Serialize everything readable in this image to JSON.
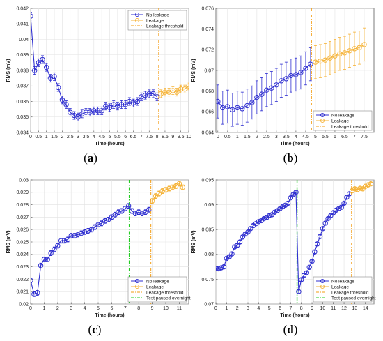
{
  "colors": {
    "no_leak": "#2f2fd0",
    "leak": "#f5b338",
    "threshold": "#f39c12",
    "paused": "#22cc22"
  },
  "chart_data": [
    {
      "id": "a",
      "type": "line",
      "panel_label": "(a)",
      "xlabel": "Time (hours)",
      "ylabel": "RMS (mV)",
      "xlim": [
        0,
        10
      ],
      "ylim": [
        0.034,
        0.042
      ],
      "xticks": [
        0,
        0.5,
        1,
        1.5,
        2,
        2.5,
        3,
        3.5,
        4,
        4.5,
        5,
        5.5,
        6,
        6.5,
        7,
        7.5,
        8,
        8.5,
        9,
        9.5,
        10
      ],
      "yticks": [
        0.034,
        0.035,
        0.036,
        0.037,
        0.038,
        0.039,
        0.04,
        0.041,
        0.042
      ],
      "ytick_labels": [
        "0.034",
        "0.035",
        "0.036",
        "0.037",
        "0.038",
        "0.039",
        "0.04",
        "0.041",
        "0.042"
      ],
      "grid": true,
      "legend_position": "top-right",
      "threshold_x": 8.1,
      "series": [
        {
          "name": "No leakage",
          "color_key": "no_leak",
          "err": 0.00025,
          "x": [
            0,
            0.25,
            0.5,
            0.75,
            1,
            1.25,
            1.5,
            1.75,
            2,
            2.25,
            2.5,
            2.75,
            3,
            3.25,
            3.5,
            3.75,
            4,
            4.25,
            4.5,
            4.75,
            5,
            5.25,
            5.5,
            5.75,
            6,
            6.25,
            6.5,
            6.75,
            7,
            7.25,
            7.5,
            7.75,
            8
          ],
          "y": [
            0.0415,
            0.038,
            0.0385,
            0.0387,
            0.0382,
            0.0375,
            0.0376,
            0.0369,
            0.0361,
            0.0358,
            0.0353,
            0.0351,
            0.035,
            0.0352,
            0.0353,
            0.0353,
            0.0354,
            0.0354,
            0.0354,
            0.0357,
            0.0356,
            0.0358,
            0.0357,
            0.0358,
            0.0358,
            0.036,
            0.0359,
            0.036,
            0.0363,
            0.0364,
            0.0365,
            0.0365,
            0.0363
          ]
        },
        {
          "name": "Leakage",
          "color_key": "leak",
          "err": 0.00025,
          "x": [
            8.25,
            8.5,
            8.75,
            9,
            9.25,
            9.5,
            9.75,
            10
          ],
          "y": [
            0.0365,
            0.0366,
            0.0366,
            0.0367,
            0.0366,
            0.0368,
            0.0368,
            0.037
          ]
        }
      ],
      "legend": [
        "No leakage",
        "Leakage",
        "Leakage threshold"
      ]
    },
    {
      "id": "b",
      "type": "line",
      "panel_label": "(b)",
      "xlabel": "Time (hours)",
      "ylabel": "RMS (mV)",
      "xlim": [
        -0.1,
        8
      ],
      "ylim": [
        0.064,
        0.076
      ],
      "xticks": [
        0,
        0.5,
        1,
        1.5,
        2,
        2.5,
        3,
        3.5,
        4,
        4.5,
        5,
        5.5,
        6,
        6.5,
        7,
        7.5
      ],
      "yticks": [
        0.064,
        0.066,
        0.068,
        0.07,
        0.072,
        0.074,
        0.076
      ],
      "ytick_labels": [
        "0.064",
        "0.066",
        "0.068",
        "0.07",
        "0.072",
        "0.074",
        "0.076"
      ],
      "grid": true,
      "legend_position": "bottom-right",
      "threshold_x": 4.8,
      "series": [
        {
          "name": "No leakage",
          "color_key": "no_leak",
          "err": 0.0016,
          "x": [
            0,
            0.25,
            0.5,
            0.75,
            1,
            1.25,
            1.5,
            1.75,
            2,
            2.25,
            2.5,
            2.75,
            3,
            3.25,
            3.5,
            3.75,
            4,
            4.25,
            4.5,
            4.75
          ],
          "y": [
            0.067,
            0.0664,
            0.0665,
            0.0662,
            0.0664,
            0.0663,
            0.0666,
            0.0669,
            0.0674,
            0.0677,
            0.0681,
            0.0683,
            0.0686,
            0.069,
            0.0692,
            0.0695,
            0.0696,
            0.0698,
            0.0702,
            0.0706
          ]
        },
        {
          "name": "Leakage",
          "color_key": "leak",
          "err": 0.0016,
          "x": [
            5,
            5.25,
            5.5,
            5.75,
            6,
            6.25,
            6.5,
            6.75,
            7,
            7.25,
            7.5
          ],
          "y": [
            0.0708,
            0.0709,
            0.071,
            0.0712,
            0.0714,
            0.0716,
            0.0717,
            0.0719,
            0.0721,
            0.0722,
            0.0725
          ]
        }
      ],
      "legend": [
        "No leakage",
        "Leakage",
        "Leakage threshold"
      ]
    },
    {
      "id": "c",
      "type": "line",
      "panel_label": "(c)",
      "xlabel": "Time (hours)",
      "ylabel": "RMS (mV)",
      "xlim": [
        0,
        11.7
      ],
      "ylim": [
        0.02,
        0.03
      ],
      "xticks": [
        0,
        1,
        2,
        3,
        4,
        5,
        6,
        7,
        8,
        9,
        10,
        11
      ],
      "yticks": [
        0.02,
        0.021,
        0.022,
        0.023,
        0.024,
        0.025,
        0.026,
        0.027,
        0.028,
        0.029,
        0.03
      ],
      "ytick_labels": [
        "0.02",
        "0.021",
        "0.022",
        "0.023",
        "0.024",
        "0.025",
        "0.026",
        "0.027",
        "0.028",
        "0.029",
        "0.03"
      ],
      "grid": true,
      "legend_position": "bottom-right",
      "threshold_x": 8.9,
      "paused_x": 7.3,
      "series": [
        {
          "name": "No leakage",
          "color_key": "no_leak",
          "err": 0.0002,
          "x": [
            0,
            0.25,
            0.5,
            0.75,
            1,
            1.25,
            1.5,
            1.75,
            2,
            2.25,
            2.5,
            2.75,
            3,
            3.25,
            3.5,
            3.75,
            4,
            4.25,
            4.5,
            4.75,
            5,
            5.25,
            5.5,
            5.75,
            6,
            6.25,
            6.5,
            6.75,
            7,
            7.25,
            7.5,
            7.75,
            8,
            8.25,
            8.5,
            8.75
          ],
          "y": [
            0.0219,
            0.0208,
            0.0209,
            0.0231,
            0.0236,
            0.0236,
            0.0241,
            0.0244,
            0.0247,
            0.0251,
            0.0251,
            0.0252,
            0.0255,
            0.0255,
            0.0256,
            0.0257,
            0.0258,
            0.0259,
            0.026,
            0.0262,
            0.0264,
            0.0265,
            0.0267,
            0.0268,
            0.027,
            0.0272,
            0.0274,
            0.0275,
            0.0277,
            0.0279,
            0.0275,
            0.0273,
            0.0274,
            0.0273,
            0.0274,
            0.0276
          ]
        },
        {
          "name": "Leakage",
          "color_key": "leak",
          "err": 0.0002,
          "x": [
            9,
            9.25,
            9.5,
            9.75,
            10,
            10.25,
            10.5,
            10.75,
            11,
            11.25
          ],
          "y": [
            0.0283,
            0.0287,
            0.0289,
            0.0291,
            0.0292,
            0.0293,
            0.0294,
            0.0295,
            0.0297,
            0.0294
          ]
        }
      ],
      "legend": [
        "No leakage",
        "Leakage",
        "Leakage threshold",
        "Test paused overnight"
      ]
    },
    {
      "id": "d",
      "type": "line",
      "panel_label": "(d)",
      "xlabel": "Time (hours)",
      "ylabel": "RMS (mV)",
      "xlim": [
        0,
        14.8
      ],
      "ylim": [
        0.07,
        0.095
      ],
      "xticks": [
        0,
        1,
        2,
        3,
        4,
        5,
        6,
        7,
        8,
        9,
        10,
        11,
        12,
        13,
        14
      ],
      "yticks": [
        0.07,
        0.075,
        0.08,
        0.085,
        0.09,
        0.095
      ],
      "ytick_labels": [
        "0.07",
        "0.075",
        "0.08",
        "0.085",
        "0.09",
        "0.095"
      ],
      "grid": true,
      "legend_position": "bottom-right",
      "threshold_x": 12.7,
      "paused_x": 7.6,
      "series": [
        {
          "name": "No leakage",
          "color_key": "no_leak",
          "err": 0.0003,
          "x": [
            0,
            0.25,
            0.5,
            0.75,
            1,
            1.25,
            1.5,
            1.75,
            2,
            2.25,
            2.5,
            2.75,
            3,
            3.25,
            3.5,
            3.75,
            4,
            4.25,
            4.5,
            4.75,
            5,
            5.25,
            5.5,
            5.75,
            6,
            6.25,
            6.5,
            6.75,
            7,
            7.25,
            7.5,
            7.75,
            8,
            8.25,
            8.5,
            8.75,
            9,
            9.25,
            9.5,
            9.75,
            10,
            10.25,
            10.5,
            10.75,
            11,
            11.25,
            11.5,
            11.75,
            12,
            12.25,
            12.5
          ],
          "y": [
            0.0772,
            0.0771,
            0.0773,
            0.0775,
            0.0792,
            0.0795,
            0.0801,
            0.0815,
            0.0818,
            0.0825,
            0.0835,
            0.0841,
            0.0845,
            0.0852,
            0.0858,
            0.0862,
            0.0866,
            0.0868,
            0.0872,
            0.0874,
            0.0878,
            0.088,
            0.0885,
            0.0888,
            0.0892,
            0.0896,
            0.0899,
            0.0903,
            0.0914,
            0.0921,
            0.0925,
            0.0725,
            0.0749,
            0.0758,
            0.0763,
            0.0774,
            0.0786,
            0.0805,
            0.0821,
            0.0836,
            0.0852,
            0.0863,
            0.0872,
            0.0878,
            0.0884,
            0.0889,
            0.0892,
            0.0895,
            0.0903,
            0.0915,
            0.0922
          ]
        },
        {
          "name": "Leakage",
          "color_key": "leak",
          "err": 0.0003,
          "x": [
            12.75,
            13,
            13.25,
            13.5,
            13.75,
            14,
            14.25,
            14.5
          ],
          "y": [
            0.0928,
            0.0932,
            0.093,
            0.0933,
            0.0932,
            0.0937,
            0.094,
            0.0942
          ]
        }
      ],
      "legend": [
        "No leakage",
        "Leakage",
        "Leakage threshold",
        "Test paused overnight"
      ]
    }
  ]
}
